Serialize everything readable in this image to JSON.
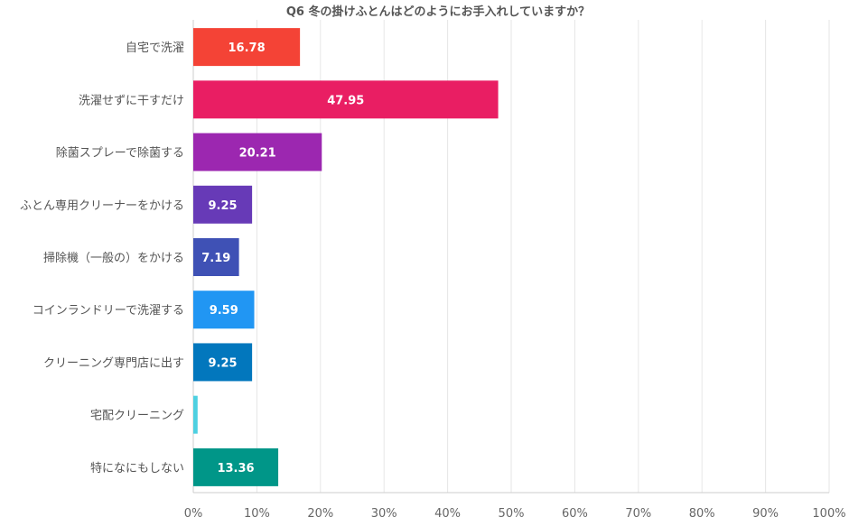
{
  "chart_data": {
    "type": "bar",
    "orientation": "horizontal",
    "title": "Q6 冬の掛けふとんはどのようにお手入れしていますか？",
    "categories": [
      "自宅で洗濯",
      "洗濯せずに干すだけ",
      "除菌スプレーで除菌する",
      "ふとん専用クリーナーをかける",
      "掃除機（一般の）をかける",
      "コインランドリーで洗濯する",
      "クリーニング専門店に出す",
      "宅配クリーニング",
      "特になにもしない"
    ],
    "values": [
      16.78,
      47.95,
      20.21,
      9.25,
      7.19,
      9.59,
      9.25,
      0.68,
      13.36
    ],
    "data_labels": [
      "16.78",
      "47.95",
      "20.21",
      "9.25",
      "7.19",
      "9.59",
      "9.25",
      "",
      "13.36"
    ],
    "colors": [
      "#F44336",
      "#E91E63",
      "#9C27B0",
      "#673AB7",
      "#3F51B5",
      "#2196F3",
      "#0277BD",
      "#4DD0E1",
      "#009688"
    ],
    "xlim": [
      0,
      100
    ],
    "xticks": [
      "0%",
      "10%",
      "20%",
      "30%",
      "40%",
      "50%",
      "60%",
      "70%",
      "80%",
      "90%",
      "100%"
    ],
    "grid": true,
    "legend": "none"
  }
}
